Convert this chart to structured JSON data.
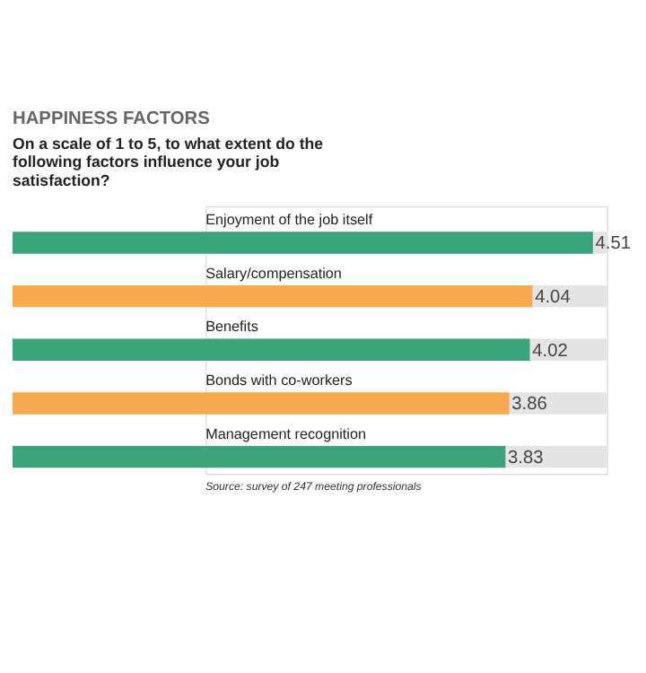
{
  "chart_data": {
    "type": "bar",
    "orientation": "horizontal",
    "title": "HAPPINESS FACTORS",
    "subtitle": "On a scale of 1 to 5, to what extent do the following factors influence your job satisfaction?",
    "categories": [
      "Enjoyment of the job itself",
      "Salary/compensation",
      "Benefits",
      "Bonds with co-workers",
      "Management recognition"
    ],
    "values": [
      4.51,
      4.04,
      4.02,
      3.86,
      3.83
    ],
    "colors": [
      "#3aa57a",
      "#f9a94f",
      "#3aa57a",
      "#f9a94f",
      "#3aa57a"
    ],
    "xlim": [
      1.5,
      4.62
    ],
    "data_labels": true,
    "annotations": [
      "Source: survey of 247 meeting professionals"
    ]
  }
}
